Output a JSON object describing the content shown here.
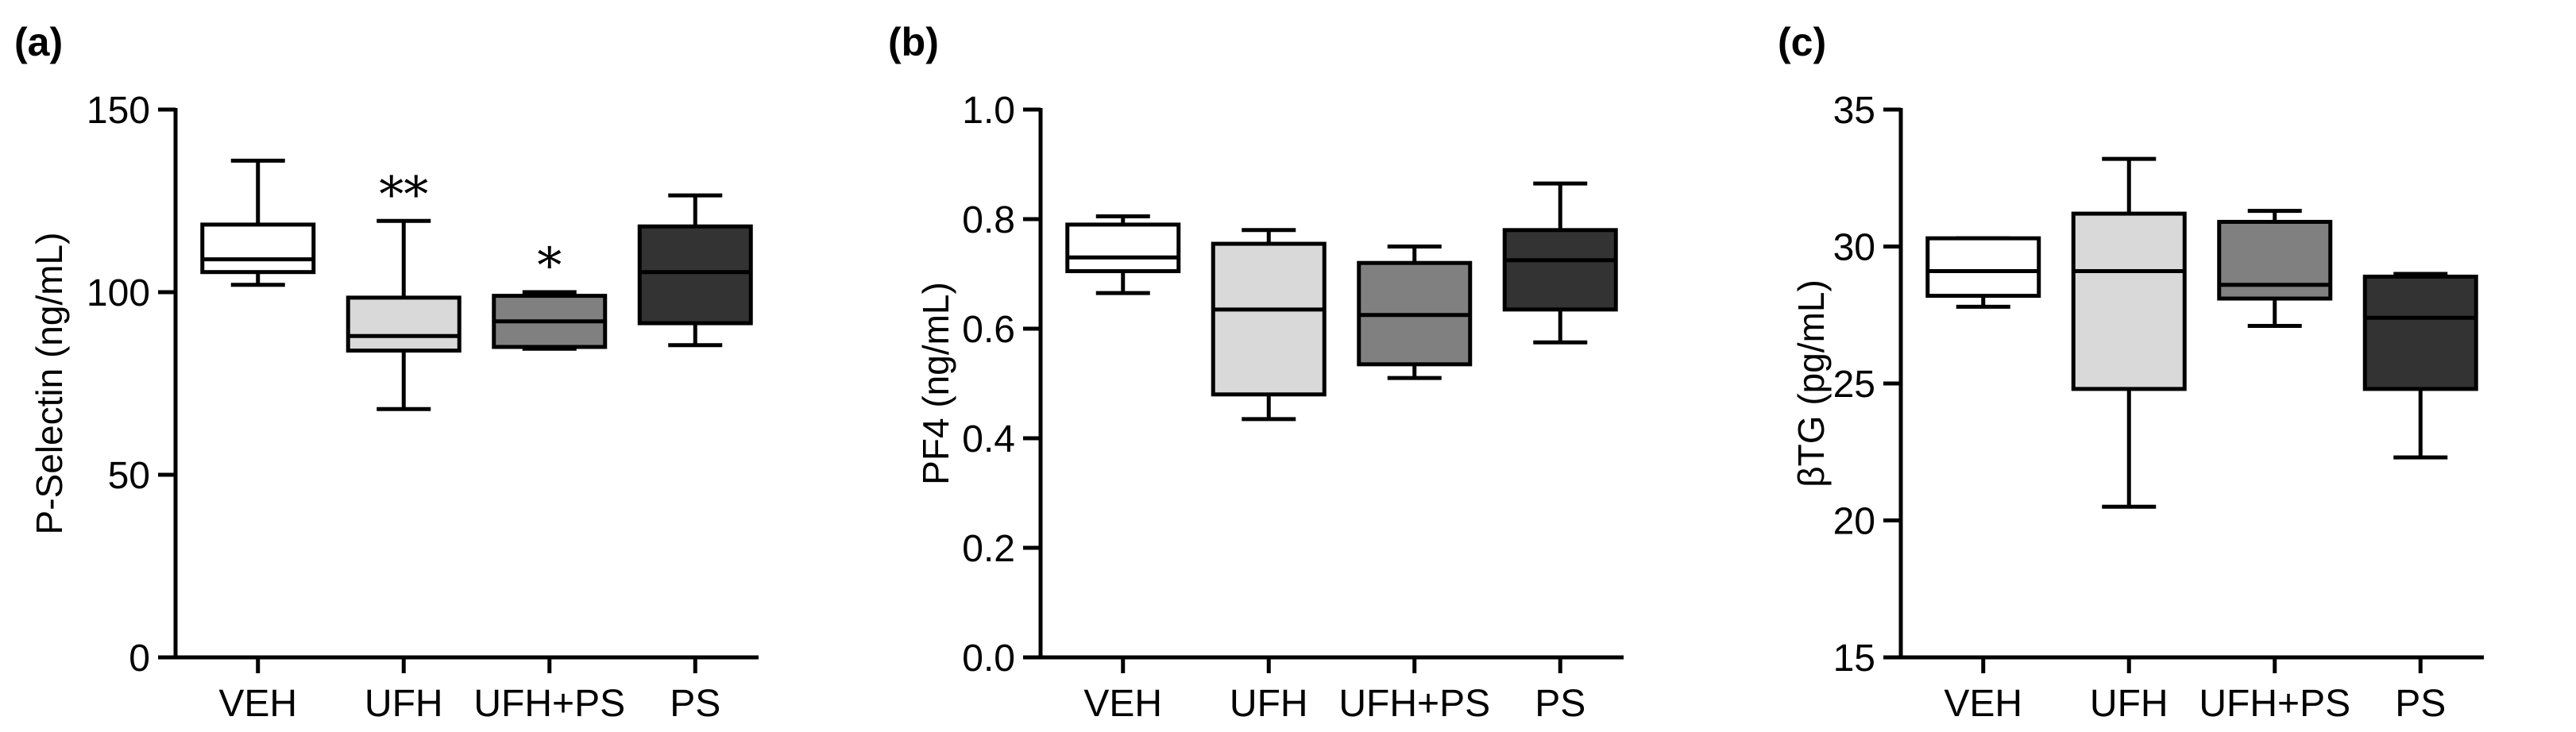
{
  "chart_data": [
    {
      "type": "box",
      "panel_label": "(a)",
      "ylabel": "P-Selectin (ng/mL)",
      "ylim": [
        0,
        150
      ],
      "yticks": [
        0,
        50,
        100,
        150
      ],
      "categories": [
        "VEH",
        "UFH",
        "UFH+PS",
        "PS"
      ],
      "boxes": [
        {
          "category": "VEH",
          "min": 102,
          "q1": 105.5,
          "median": 109,
          "q3": 118.5,
          "max": 136,
          "fill": "#ffffff",
          "annotation": ""
        },
        {
          "category": "UFH",
          "min": 68,
          "q1": 84,
          "median": 88,
          "q3": 98.5,
          "max": 119.5,
          "fill": "#d9d9d9",
          "annotation": "**"
        },
        {
          "category": "UFH+PS",
          "min": 84.5,
          "q1": 85,
          "median": 92,
          "q3": 99,
          "max": 100,
          "fill": "#808080",
          "annotation": "*"
        },
        {
          "category": "PS",
          "min": 85.5,
          "q1": 91.5,
          "median": 105.5,
          "q3": 118,
          "max": 126.5,
          "fill": "#333333",
          "annotation": ""
        }
      ]
    },
    {
      "type": "box",
      "panel_label": "(b)",
      "ylabel": "PF4 (ng/mL)",
      "ylim": [
        0.0,
        1.0
      ],
      "yticks": [
        "0.0",
        "0.2",
        "0.4",
        "0.6",
        "0.8",
        "1.0"
      ],
      "categories": [
        "VEH",
        "UFH",
        "UFH+PS",
        "PS"
      ],
      "boxes": [
        {
          "category": "VEH",
          "min": 0.665,
          "q1": 0.705,
          "median": 0.73,
          "q3": 0.79,
          "max": 0.805,
          "fill": "#ffffff",
          "annotation": ""
        },
        {
          "category": "UFH",
          "min": 0.435,
          "q1": 0.48,
          "median": 0.635,
          "q3": 0.755,
          "max": 0.78,
          "fill": "#d9d9d9",
          "annotation": ""
        },
        {
          "category": "UFH+PS",
          "min": 0.51,
          "q1": 0.535,
          "median": 0.625,
          "q3": 0.72,
          "max": 0.75,
          "fill": "#808080",
          "annotation": ""
        },
        {
          "category": "PS",
          "min": 0.575,
          "q1": 0.635,
          "median": 0.725,
          "q3": 0.78,
          "max": 0.865,
          "fill": "#333333",
          "annotation": ""
        }
      ]
    },
    {
      "type": "box",
      "panel_label": "(c)",
      "ylabel": "βTG (pg/mL)",
      "ylim": [
        15,
        35
      ],
      "yticks": [
        15,
        20,
        25,
        30,
        35
      ],
      "categories": [
        "VEH",
        "UFH",
        "UFH+PS",
        "PS"
      ],
      "boxes": [
        {
          "category": "VEH",
          "min": 27.8,
          "q1": 28.2,
          "median": 29.1,
          "q3": 30.3,
          "max": 30.3,
          "fill": "#ffffff",
          "annotation": ""
        },
        {
          "category": "UFH",
          "min": 20.5,
          "q1": 24.8,
          "median": 29.1,
          "q3": 31.2,
          "max": 33.2,
          "fill": "#d9d9d9",
          "annotation": ""
        },
        {
          "category": "UFH+PS",
          "min": 27.1,
          "q1": 28.1,
          "median": 28.6,
          "q3": 30.9,
          "max": 31.3,
          "fill": "#808080",
          "annotation": ""
        },
        {
          "category": "PS",
          "min": 22.3,
          "q1": 24.8,
          "median": 27.4,
          "q3": 28.9,
          "max": 29.0,
          "fill": "#333333",
          "annotation": ""
        }
      ]
    }
  ]
}
